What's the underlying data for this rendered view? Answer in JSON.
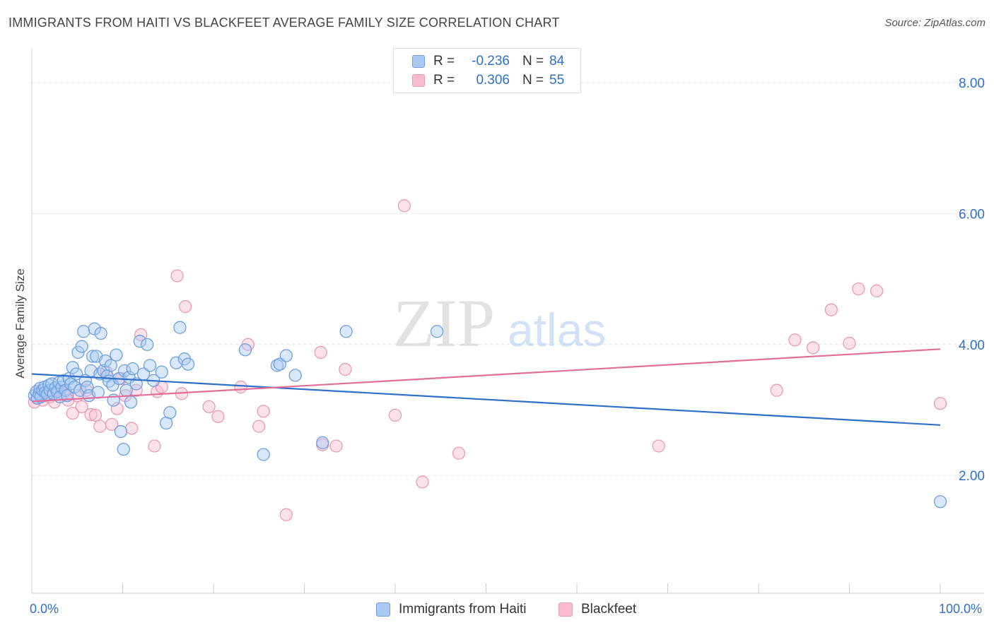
{
  "header": {
    "title": "IMMIGRANTS FROM HAITI VS BLACKFEET AVERAGE FAMILY SIZE CORRELATION CHART",
    "source": "Source: ZipAtlas.com"
  },
  "legend": {
    "rows": [
      {
        "r_label": "R = ",
        "r_value": "-0.236",
        "n_label": "N = ",
        "n_value": "84"
      },
      {
        "r_label": "R = ",
        "r_value": "0.306",
        "n_label": "N = ",
        "n_value": "55"
      }
    ]
  },
  "watermark": {
    "zip": "ZIP",
    "atlas": "atlas"
  },
  "axis": {
    "ylabel": "Average Family Size",
    "x_min_label": "0.0%",
    "x_max_label": "100.0%",
    "y_ticks": [
      "8.00",
      "6.00",
      "4.00",
      "2.00"
    ]
  },
  "colors": {
    "haiti_fill": "#a9c9f3",
    "haiti_stroke": "#6f9fe0",
    "haiti_line": "#2f6fc8",
    "blackfeet_fill": "#f7bcd0",
    "blackfeet_stroke": "#e99ab6",
    "blackfeet_line": "#e06e98",
    "tick_label": "#2f6fc8",
    "grid": "#e4e4e4"
  },
  "chart_data": {
    "type": "scatter",
    "title": "IMMIGRANTS FROM HAITI VS BLACKFEET AVERAGE FAMILY SIZE CORRELATION CHART",
    "xlabel": "",
    "ylabel": "Average Family Size",
    "xlim": [
      0,
      100
    ],
    "ylim": [
      0.2,
      8.4
    ],
    "y_gridlines": [
      2,
      4,
      6,
      8
    ],
    "grid": true,
    "legend_position": "top-center",
    "series": [
      {
        "name": "Immigrants from Haiti",
        "r": -0.236,
        "n": 84,
        "trend": {
          "x": [
            0,
            100
          ],
          "y": [
            3.55,
            2.77
          ]
        },
        "points": [
          [
            0.3,
            3.22
          ],
          [
            0.5,
            3.28
          ],
          [
            0.6,
            3.18
          ],
          [
            0.8,
            3.25
          ],
          [
            0.9,
            3.33
          ],
          [
            1.0,
            3.2
          ],
          [
            1.2,
            3.3
          ],
          [
            1.4,
            3.35
          ],
          [
            1.5,
            3.27
          ],
          [
            1.7,
            3.24
          ],
          [
            1.9,
            3.38
          ],
          [
            2.0,
            3.3
          ],
          [
            2.2,
            3.4
          ],
          [
            2.4,
            3.25
          ],
          [
            2.6,
            3.34
          ],
          [
            2.8,
            3.28
          ],
          [
            3.0,
            3.42
          ],
          [
            3.1,
            3.2
          ],
          [
            3.3,
            3.35
          ],
          [
            3.5,
            3.45
          ],
          [
            3.7,
            3.3
          ],
          [
            3.9,
            3.22
          ],
          [
            4.1,
            3.48
          ],
          [
            4.3,
            3.4
          ],
          [
            4.5,
            3.65
          ],
          [
            4.7,
            3.35
          ],
          [
            4.9,
            3.55
          ],
          [
            5.1,
            3.88
          ],
          [
            5.3,
            3.3
          ],
          [
            5.5,
            3.97
          ],
          [
            5.7,
            4.2
          ],
          [
            5.9,
            3.45
          ],
          [
            6.1,
            3.35
          ],
          [
            6.3,
            3.22
          ],
          [
            6.5,
            3.6
          ],
          [
            6.7,
            3.82
          ],
          [
            6.9,
            4.24
          ],
          [
            7.1,
            3.82
          ],
          [
            7.3,
            3.27
          ],
          [
            7.5,
            3.55
          ],
          [
            7.6,
            4.17
          ],
          [
            7.9,
            3.6
          ],
          [
            8.1,
            3.75
          ],
          [
            8.3,
            3.52
          ],
          [
            8.5,
            3.44
          ],
          [
            8.7,
            3.68
          ],
          [
            8.9,
            3.38
          ],
          [
            9.0,
            3.15
          ],
          [
            9.3,
            3.84
          ],
          [
            9.6,
            3.48
          ],
          [
            9.8,
            2.67
          ],
          [
            10.1,
            2.4
          ],
          [
            10.2,
            3.6
          ],
          [
            10.4,
            3.3
          ],
          [
            10.7,
            3.5
          ],
          [
            10.9,
            3.12
          ],
          [
            11.1,
            3.63
          ],
          [
            11.5,
            3.4
          ],
          [
            11.9,
            4.05
          ],
          [
            12.3,
            3.55
          ],
          [
            12.7,
            4.0
          ],
          [
            13.0,
            3.68
          ],
          [
            13.4,
            3.45
          ],
          [
            14.3,
            3.58
          ],
          [
            14.8,
            2.8
          ],
          [
            15.2,
            2.96
          ],
          [
            15.9,
            3.72
          ],
          [
            16.3,
            4.26
          ],
          [
            16.8,
            3.78
          ],
          [
            17.2,
            3.7
          ],
          [
            23.5,
            3.92
          ],
          [
            25.5,
            2.32
          ],
          [
            27.0,
            3.68
          ],
          [
            27.3,
            3.7
          ],
          [
            28.0,
            3.83
          ],
          [
            29.0,
            3.53
          ],
          [
            32.0,
            2.5
          ],
          [
            34.6,
            4.2
          ],
          [
            44.6,
            4.2
          ],
          [
            100.0,
            1.6
          ]
        ]
      },
      {
        "name": "Blackfeet",
        "r": 0.306,
        "n": 55,
        "trend": {
          "x": [
            0,
            100
          ],
          "y": [
            3.13,
            3.93
          ]
        },
        "points": [
          [
            0.3,
            3.12
          ],
          [
            0.6,
            3.18
          ],
          [
            0.9,
            3.28
          ],
          [
            1.2,
            3.15
          ],
          [
            1.5,
            3.22
          ],
          [
            2.0,
            3.2
          ],
          [
            2.5,
            3.12
          ],
          [
            3.0,
            3.3
          ],
          [
            3.5,
            3.25
          ],
          [
            4.0,
            3.15
          ],
          [
            4.5,
            2.95
          ],
          [
            5.0,
            3.22
          ],
          [
            5.5,
            3.05
          ],
          [
            6.0,
            3.3
          ],
          [
            6.5,
            2.93
          ],
          [
            7.0,
            2.92
          ],
          [
            7.5,
            2.75
          ],
          [
            8.2,
            3.58
          ],
          [
            8.8,
            2.78
          ],
          [
            9.4,
            3.02
          ],
          [
            9.8,
            3.48
          ],
          [
            10.3,
            3.22
          ],
          [
            11.0,
            2.72
          ],
          [
            11.5,
            3.3
          ],
          [
            12.0,
            4.15
          ],
          [
            13.5,
            2.45
          ],
          [
            13.8,
            3.28
          ],
          [
            14.3,
            3.35
          ],
          [
            16.0,
            5.05
          ],
          [
            16.5,
            3.25
          ],
          [
            16.9,
            4.58
          ],
          [
            19.5,
            3.05
          ],
          [
            20.5,
            2.9
          ],
          [
            23.0,
            3.35
          ],
          [
            23.8,
            4.0
          ],
          [
            25.0,
            2.75
          ],
          [
            25.5,
            2.98
          ],
          [
            28.0,
            1.4
          ],
          [
            31.8,
            3.88
          ],
          [
            32.0,
            2.47
          ],
          [
            33.5,
            2.45
          ],
          [
            34.5,
            3.62
          ],
          [
            40.0,
            2.92
          ],
          [
            41.0,
            6.12
          ],
          [
            43.0,
            1.9
          ],
          [
            47.0,
            2.34
          ],
          [
            69.0,
            2.45
          ],
          [
            82.0,
            3.3
          ],
          [
            84.0,
            4.07
          ],
          [
            86.0,
            3.95
          ],
          [
            88.0,
            4.53
          ],
          [
            90.0,
            4.02
          ],
          [
            91.0,
            4.85
          ],
          [
            93.0,
            4.82
          ],
          [
            100.0,
            3.1
          ]
        ]
      }
    ]
  }
}
